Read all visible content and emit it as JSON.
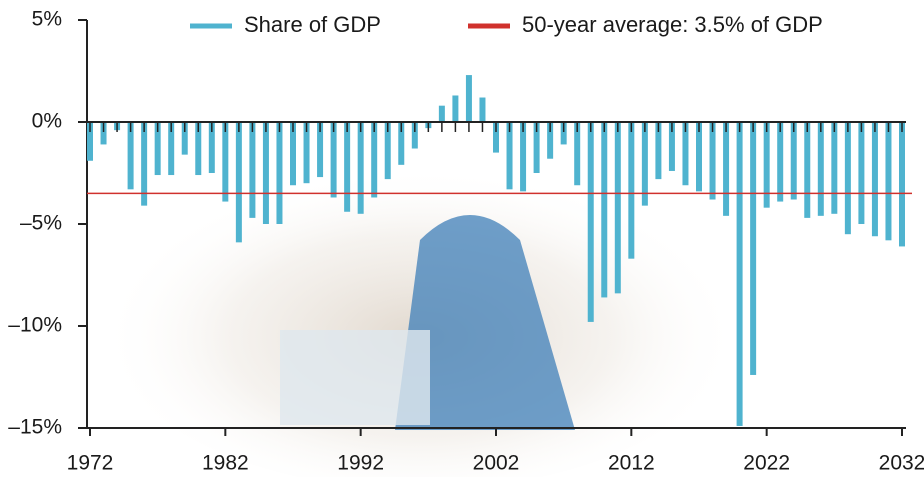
{
  "chart_data": {
    "type": "bar",
    "categories": [
      "1972",
      null,
      null,
      null,
      null,
      null,
      null,
      null,
      null,
      null,
      "1982",
      null,
      null,
      null,
      null,
      null,
      null,
      null,
      null,
      null,
      "1992",
      null,
      null,
      null,
      null,
      null,
      null,
      null,
      null,
      null,
      "2002",
      null,
      null,
      null,
      null,
      null,
      null,
      null,
      null,
      null,
      "2012",
      null,
      null,
      null,
      null,
      null,
      null,
      null,
      null,
      null,
      "2022",
      null,
      null,
      null,
      null,
      null,
      null,
      null,
      null,
      null,
      "2032"
    ],
    "series": [
      {
        "name": "Share of GDP",
        "color": "#4fb3cf",
        "values": [
          -1.9,
          -1.1,
          -0.4,
          -3.3,
          -4.1,
          -2.6,
          -2.6,
          -1.6,
          -2.6,
          -2.5,
          -3.9,
          -5.9,
          -4.7,
          -5.0,
          -5.0,
          -3.1,
          -3.0,
          -2.7,
          -3.7,
          -4.4,
          -4.5,
          -3.7,
          -2.8,
          -2.1,
          -1.3,
          -0.3,
          0.8,
          1.3,
          2.3,
          1.2,
          -1.5,
          -3.3,
          -3.4,
          -2.5,
          -1.8,
          -1.1,
          -3.1,
          -9.8,
          -8.6,
          -8.4,
          -6.7,
          -4.1,
          -2.8,
          -2.4,
          -3.1,
          -3.4,
          -3.8,
          -4.6,
          -14.9,
          -12.4,
          -4.2,
          -3.9,
          -3.8,
          -4.7,
          -4.6,
          -4.5,
          -5.5,
          -5.0,
          -5.6,
          -5.8,
          -6.1
        ]
      }
    ],
    "reference_line": {
      "name": "50-year average: 3.5% of GDP",
      "value": -3.5,
      "color": "#d0312d"
    },
    "ylim": [
      -15,
      5
    ],
    "yticks": [
      {
        "value": 5,
        "label": "5%"
      },
      {
        "value": 0,
        "label": "0%"
      },
      {
        "value": -5,
        "label": "–5%"
      },
      {
        "value": -10,
        "label": "–10%"
      },
      {
        "value": -15,
        "label": "–15%"
      }
    ],
    "legend": "top"
  }
}
